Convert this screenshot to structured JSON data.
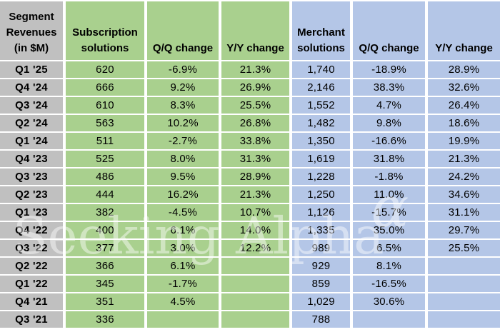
{
  "colors": {
    "grey": "#C0C0C0",
    "green": "#A9D08E",
    "blue": "#B4C6E7",
    "gridline": "#FFFFFF",
    "text": "#000000",
    "watermark": "rgba(255,255,255,0.45)"
  },
  "table": {
    "corner_header": "Segment\nRevenues\n(in $M)",
    "column_headers": [
      "Subscription\nsolutions",
      "Q/Q change",
      "Y/Y change",
      "Merchant\nsolutions",
      "Q/Q change",
      "Y/Y change"
    ]
  },
  "watermark": {
    "text": "Seeking Alpha",
    "alpha_symbol": "α"
  },
  "chart_data": {
    "type": "table",
    "title": "Segment Revenues (in $M)",
    "categories": [
      "Q1 '25",
      "Q4 '24",
      "Q3 '24",
      "Q2 '24",
      "Q1 '24",
      "Q4 '23",
      "Q3 '23",
      "Q2 '23",
      "Q1 '23",
      "Q4 '22",
      "Q3 '22",
      "Q2 '22",
      "Q1 '22",
      "Q4 '21",
      "Q3 '21"
    ],
    "series": [
      {
        "name": "Subscription solutions revenue ($M)",
        "values": [
          "620",
          "666",
          "610",
          "563",
          "511",
          "525",
          "486",
          "444",
          "382",
          "400",
          "377",
          "366",
          "345",
          "351",
          "336"
        ]
      },
      {
        "name": "Subscription solutions Q/Q change",
        "values": [
          "-6.9%",
          "9.2%",
          "8.3%",
          "10.2%",
          "-2.7%",
          "8.0%",
          "9.5%",
          "16.2%",
          "-4.5%",
          "6.1%",
          "3.0%",
          "6.1%",
          "-1.7%",
          "4.5%",
          ""
        ]
      },
      {
        "name": "Subscription solutions Y/Y change",
        "values": [
          "21.3%",
          "26.9%",
          "25.5%",
          "26.8%",
          "33.8%",
          "31.3%",
          "28.9%",
          "21.3%",
          "10.7%",
          "14.0%",
          "12.2%",
          "",
          "",
          "",
          ""
        ]
      },
      {
        "name": "Merchant solutions revenue ($M)",
        "values": [
          "1,740",
          "2,146",
          "1,552",
          "1,482",
          "1,350",
          "1,619",
          "1,228",
          "1,250",
          "1,126",
          "1,335",
          "989",
          "929",
          "859",
          "1,029",
          "788"
        ]
      },
      {
        "name": "Merchant solutions Q/Q change",
        "values": [
          "-18.9%",
          "38.3%",
          "4.7%",
          "9.8%",
          "-16.6%",
          "31.8%",
          "-1.8%",
          "11.0%",
          "-15.7%",
          "35.0%",
          "6.5%",
          "8.1%",
          "-16.5%",
          "30.6%",
          ""
        ]
      },
      {
        "name": "Merchant solutions Y/Y change",
        "values": [
          "28.9%",
          "32.6%",
          "26.4%",
          "18.6%",
          "19.9%",
          "21.3%",
          "24.2%",
          "34.6%",
          "31.1%",
          "29.7%",
          "25.5%",
          "",
          "",
          "",
          ""
        ]
      }
    ]
  }
}
